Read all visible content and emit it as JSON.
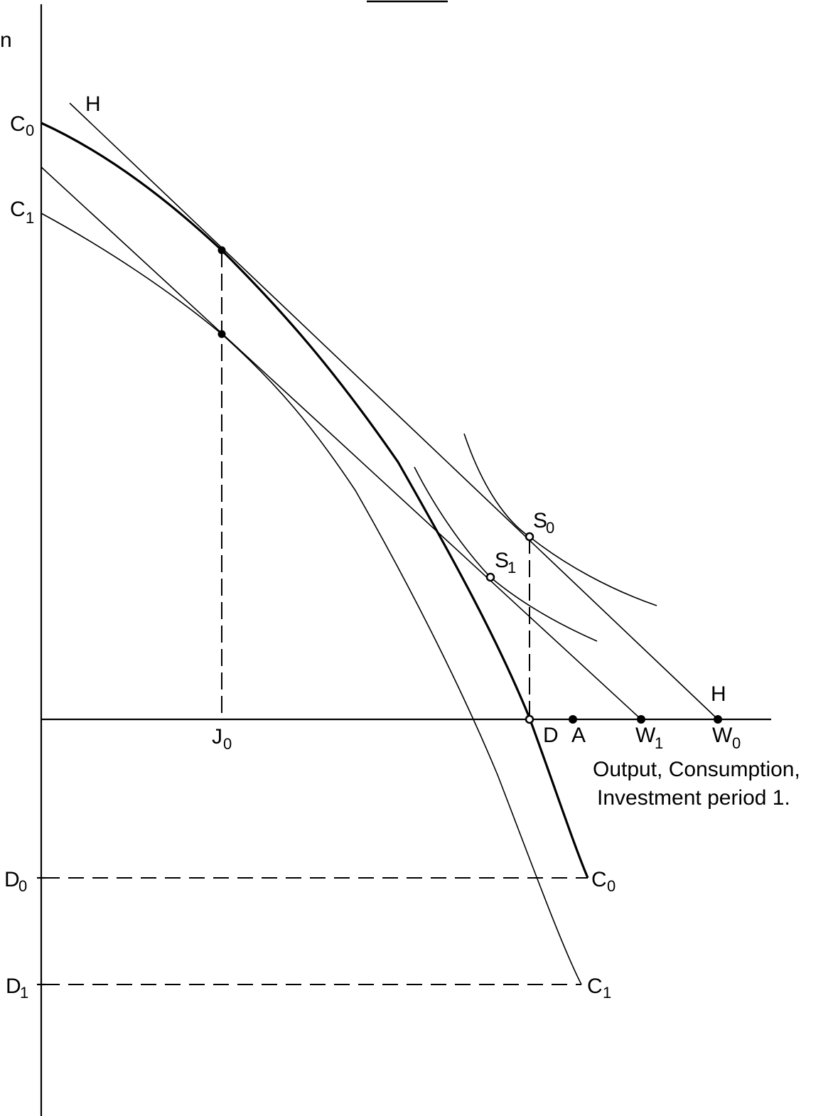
{
  "labels": {
    "top_edge_char": "n",
    "c0_curve_top": "C",
    "c0_curve_top_sub": "0",
    "c1_curve_top": "C",
    "c1_curve_top_sub": "1",
    "h_line_top": "H",
    "h_line_bottom": "H",
    "s0": "S",
    "s0_sub": "0",
    "s1": "S",
    "s1_sub": "1",
    "j0": "J",
    "j0_sub": "0",
    "d_point": "D",
    "a_point": "A",
    "w1": "W",
    "w1_sub": "1",
    "w0": "W",
    "w0_sub": "0",
    "d0": "D",
    "d0_sub": "0",
    "d1": "D",
    "d1_sub": "1",
    "c0_curve_bottom": "C",
    "c0_curve_bottom_sub": "0",
    "c1_curve_bottom": "C",
    "c1_curve_bottom_sub": "1",
    "x_axis_label_line1": "Output, Consumption,",
    "x_axis_label_line2": "Investment period 1."
  }
}
